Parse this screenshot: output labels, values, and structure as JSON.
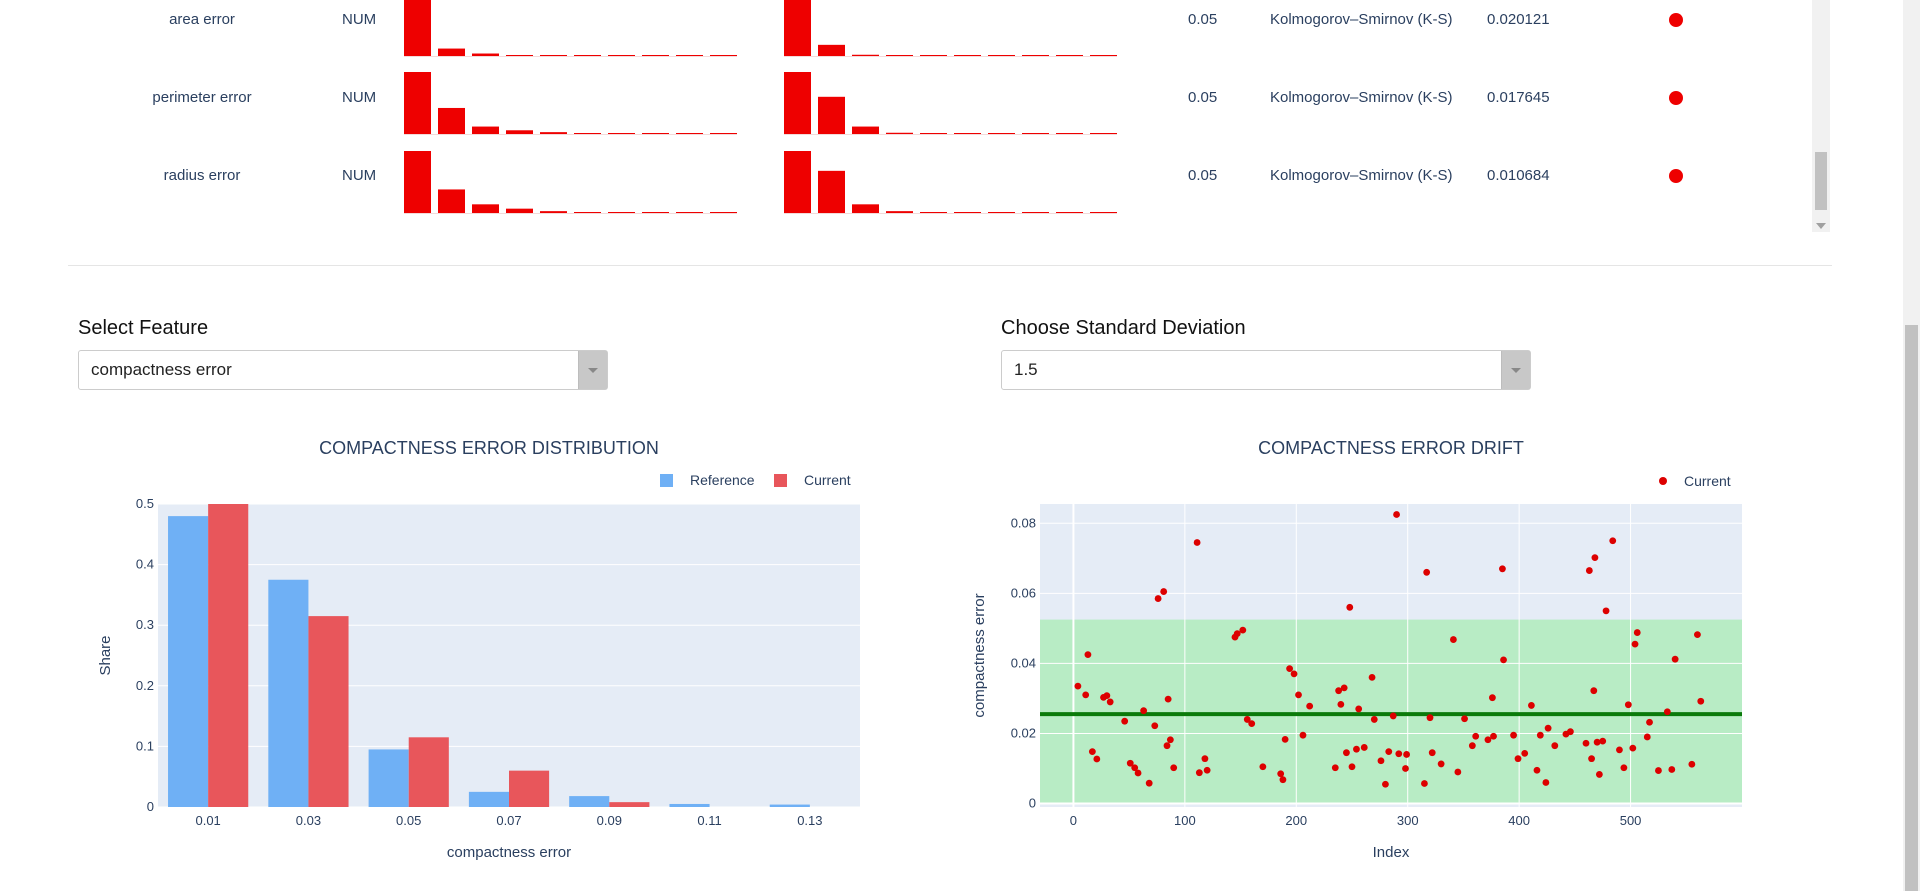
{
  "table": {
    "rows": [
      {
        "feature": "area error",
        "type": "NUM",
        "threshold": "0.05",
        "stat_test": "Kolmogorov–Smirnov (K-S)",
        "score": "0.020121",
        "ref_bars": [
          100,
          12,
          4,
          1,
          0.5,
          0.3,
          0.2,
          0.2,
          0.2,
          0.2
        ],
        "cur_bars": [
          100,
          18,
          2,
          0.5,
          0.3,
          0.2,
          0.2,
          0.2,
          0.2,
          1
        ]
      },
      {
        "feature": "perimeter error",
        "type": "NUM",
        "threshold": "0.05",
        "stat_test": "Kolmogorov–Smirnov (K-S)",
        "score": "0.017645",
        "ref_bars": [
          100,
          42,
          12,
          6,
          3,
          1,
          0.3,
          0.3,
          0.3,
          0.3
        ],
        "cur_bars": [
          100,
          60,
          12,
          2,
          0.5,
          0.3,
          0.3,
          0.3,
          0.3,
          1
        ]
      },
      {
        "feature": "radius error",
        "type": "NUM",
        "threshold": "0.05",
        "stat_test": "Kolmogorov–Smirnov (K-S)",
        "score": "0.010684",
        "ref_bars": [
          100,
          38,
          14,
          7,
          3,
          1,
          0.3,
          0.3,
          0.3,
          0.3
        ],
        "cur_bars": [
          100,
          68,
          14,
          3,
          0.5,
          0.3,
          0.3,
          0.3,
          0.3,
          1
        ]
      }
    ]
  },
  "colors": {
    "drift": "#ee0000",
    "reference": "#6fb0f5",
    "current": "#e8565b",
    "plot_bg": "#e5ecf6",
    "band": "#b8ecc5",
    "mean_line": "#0a7a0a",
    "point": "#dd0000"
  },
  "controls": {
    "feature_label": "Select Feature",
    "feature_value": "compactness error",
    "std_label": "Choose Standard Deviation",
    "std_value": "1.5"
  },
  "chart_data": [
    {
      "type": "bar",
      "title": "COMPACTNESS ERROR DISTRIBUTION",
      "xlabel": "compactness error",
      "ylabel": "Share",
      "categories": [
        "0.01",
        "0.03",
        "0.05",
        "0.07",
        "0.09",
        "0.11",
        "0.13"
      ],
      "ylim": [
        0,
        0.5
      ],
      "yticks": [
        "0",
        "0.1",
        "0.2",
        "0.3",
        "0.4",
        "0.5"
      ],
      "legend": "top-right",
      "series": [
        {
          "name": "Reference",
          "values": [
            0.48,
            0.375,
            0.095,
            0.025,
            0.018,
            0.005,
            0.004
          ]
        },
        {
          "name": "Current",
          "values": [
            0.5,
            0.315,
            0.115,
            0.06,
            0.008,
            0,
            0
          ]
        }
      ]
    },
    {
      "type": "scatter",
      "title": "COMPACTNESS ERROR DRIFT",
      "xlabel": "Index",
      "ylabel": "compactness error",
      "xlim": [
        -30,
        600
      ],
      "ylim": [
        -0.001,
        0.0855
      ],
      "xticks": [
        "0",
        "100",
        "200",
        "300",
        "400",
        "500"
      ],
      "yticks": [
        "0",
        "0.02",
        "0.04",
        "0.06",
        "0.08"
      ],
      "legend": "top-right",
      "band": [
        0,
        0.0525
      ],
      "mean": 0.0255,
      "series": [
        {
          "name": "Current",
          "points": [
            [
              4,
              0.0335
            ],
            [
              11,
              0.031
            ],
            [
              13,
              0.0425
            ],
            [
              17,
              0.0148
            ],
            [
              21,
              0.0127
            ],
            [
              27,
              0.0303
            ],
            [
              30,
              0.0308
            ],
            [
              33,
              0.029
            ],
            [
              46,
              0.0235
            ],
            [
              51,
              0.0115
            ],
            [
              55,
              0.0102
            ],
            [
              58,
              0.0087
            ],
            [
              63,
              0.0265
            ],
            [
              68,
              0.0058
            ],
            [
              73,
              0.0222
            ],
            [
              76,
              0.0585
            ],
            [
              81,
              0.0605
            ],
            [
              85,
              0.0298
            ],
            [
              84,
              0.0165
            ],
            [
              87,
              0.0182
            ],
            [
              90,
              0.0102
            ],
            [
              111,
              0.0745
            ],
            [
              113,
              0.0088
            ],
            [
              118,
              0.0128
            ],
            [
              120,
              0.0095
            ],
            [
              145,
              0.0475
            ],
            [
              147,
              0.0485
            ],
            [
              152,
              0.0495
            ],
            [
              156,
              0.024
            ],
            [
              160,
              0.0228
            ],
            [
              170,
              0.0105
            ],
            [
              186,
              0.0085
            ],
            [
              188,
              0.0068
            ],
            [
              190,
              0.0183
            ],
            [
              194,
              0.0385
            ],
            [
              198,
              0.037
            ],
            [
              202,
              0.031
            ],
            [
              206,
              0.0195
            ],
            [
              212,
              0.0278
            ],
            [
              235,
              0.0102
            ],
            [
              238,
              0.0322
            ],
            [
              240,
              0.0283
            ],
            [
              243,
              0.033
            ],
            [
              245,
              0.0145
            ],
            [
              248,
              0.056
            ],
            [
              250,
              0.0105
            ],
            [
              254,
              0.0155
            ],
            [
              256,
              0.027
            ],
            [
              261,
              0.016
            ],
            [
              268,
              0.036
            ],
            [
              270,
              0.024
            ],
            [
              276,
              0.0122
            ],
            [
              280,
              0.0055
            ],
            [
              283,
              0.0148
            ],
            [
              287,
              0.025
            ],
            [
              290,
              0.0825
            ],
            [
              292,
              0.0142
            ],
            [
              298,
              0.01
            ],
            [
              299,
              0.014
            ],
            [
              315,
              0.0057
            ],
            [
              317,
              0.066
            ],
            [
              320,
              0.0245
            ],
            [
              322,
              0.0145
            ],
            [
              330,
              0.0113
            ],
            [
              341,
              0.0468
            ],
            [
              345,
              0.009
            ],
            [
              351,
              0.0242
            ],
            [
              358,
              0.0165
            ],
            [
              361,
              0.0192
            ],
            [
              372,
              0.0182
            ],
            [
              376,
              0.0302
            ],
            [
              377,
              0.0192
            ],
            [
              385,
              0.067
            ],
            [
              386,
              0.041
            ],
            [
              395,
              0.0195
            ],
            [
              399,
              0.0128
            ],
            [
              405,
              0.0143
            ],
            [
              411,
              0.028
            ],
            [
              416,
              0.0095
            ],
            [
              419,
              0.0195
            ],
            [
              424,
              0.006
            ],
            [
              426,
              0.0215
            ],
            [
              432,
              0.0165
            ],
            [
              442,
              0.0198
            ],
            [
              446,
              0.0205
            ],
            [
              460,
              0.0172
            ],
            [
              463,
              0.0665
            ],
            [
              465,
              0.0128
            ],
            [
              467,
              0.0322
            ],
            [
              468,
              0.0702
            ],
            [
              470,
              0.0175
            ],
            [
              472,
              0.0083
            ],
            [
              475,
              0.0178
            ],
            [
              478,
              0.055
            ],
            [
              484,
              0.075
            ],
            [
              490,
              0.0153
            ],
            [
              494,
              0.0102
            ],
            [
              498,
              0.0282
            ],
            [
              502,
              0.0158
            ],
            [
              504,
              0.0455
            ],
            [
              506,
              0.0488
            ],
            [
              515,
              0.019
            ],
            [
              517,
              0.0232
            ],
            [
              525,
              0.0094
            ],
            [
              533,
              0.0262
            ],
            [
              537,
              0.0097
            ],
            [
              540,
              0.0412
            ],
            [
              555,
              0.0112
            ],
            [
              560,
              0.0482
            ],
            [
              563,
              0.0292
            ]
          ]
        }
      ]
    }
  ]
}
